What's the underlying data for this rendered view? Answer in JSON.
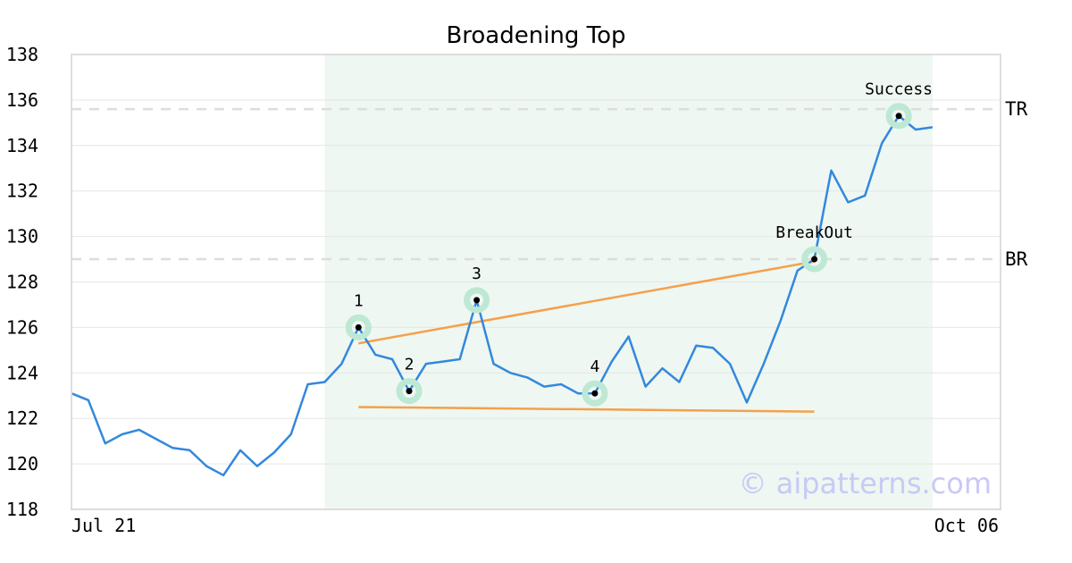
{
  "chart_data": {
    "type": "line",
    "title": "Broadening Top",
    "ylim": [
      118,
      138
    ],
    "yticks": [
      118,
      120,
      122,
      124,
      126,
      128,
      130,
      132,
      134,
      136,
      138
    ],
    "x_start_label": "Jul 21",
    "x_end_label": "Oct 06",
    "grid": true,
    "colors": {
      "line": "#3388dd",
      "trend": "#f5a04a",
      "highlight": "#eef7f2",
      "marker_ring": "#bde8d4",
      "level": "#dddddd",
      "watermark": "#c9c9f5"
    },
    "series": [
      {
        "values": [
          123.1,
          122.8,
          120.9,
          121.3,
          121.5,
          121.1,
          120.7,
          120.6,
          119.9,
          119.5,
          120.6,
          119.9,
          120.5,
          121.3,
          123.5,
          123.6,
          124.4,
          126.0,
          124.8,
          124.6,
          123.2,
          124.4,
          124.5,
          124.6,
          127.2,
          124.4,
          124.0,
          123.8,
          123.4,
          123.5,
          123.1,
          123.1,
          124.5,
          125.6,
          123.4,
          124.2,
          123.6,
          125.2,
          125.1,
          124.4,
          122.7,
          124.4,
          126.3,
          128.5,
          129.0,
          132.9,
          131.5,
          131.8,
          134.1,
          135.3,
          134.7,
          134.8
        ]
      }
    ],
    "highlight_range": [
      15,
      51
    ],
    "levels": [
      {
        "label": "TR",
        "y": 135.6
      },
      {
        "label": "BR",
        "y": 129.0
      }
    ],
    "trendlines": [
      {
        "x1": 17,
        "y1": 125.3,
        "x2": 44,
        "y2": 128.9
      },
      {
        "x1": 17,
        "y1": 122.5,
        "x2": 44,
        "y2": 122.3
      }
    ],
    "points": [
      {
        "label": "1",
        "x": 17,
        "y": 126.0
      },
      {
        "label": "2",
        "x": 20,
        "y": 123.2
      },
      {
        "label": "3",
        "x": 24,
        "y": 127.2
      },
      {
        "label": "4",
        "x": 31,
        "y": 123.1
      },
      {
        "label": "BreakOut",
        "x": 44,
        "y": 129.0
      },
      {
        "label": "Success",
        "x": 49,
        "y": 135.3
      }
    ],
    "watermark": "© aipatterns.com"
  }
}
